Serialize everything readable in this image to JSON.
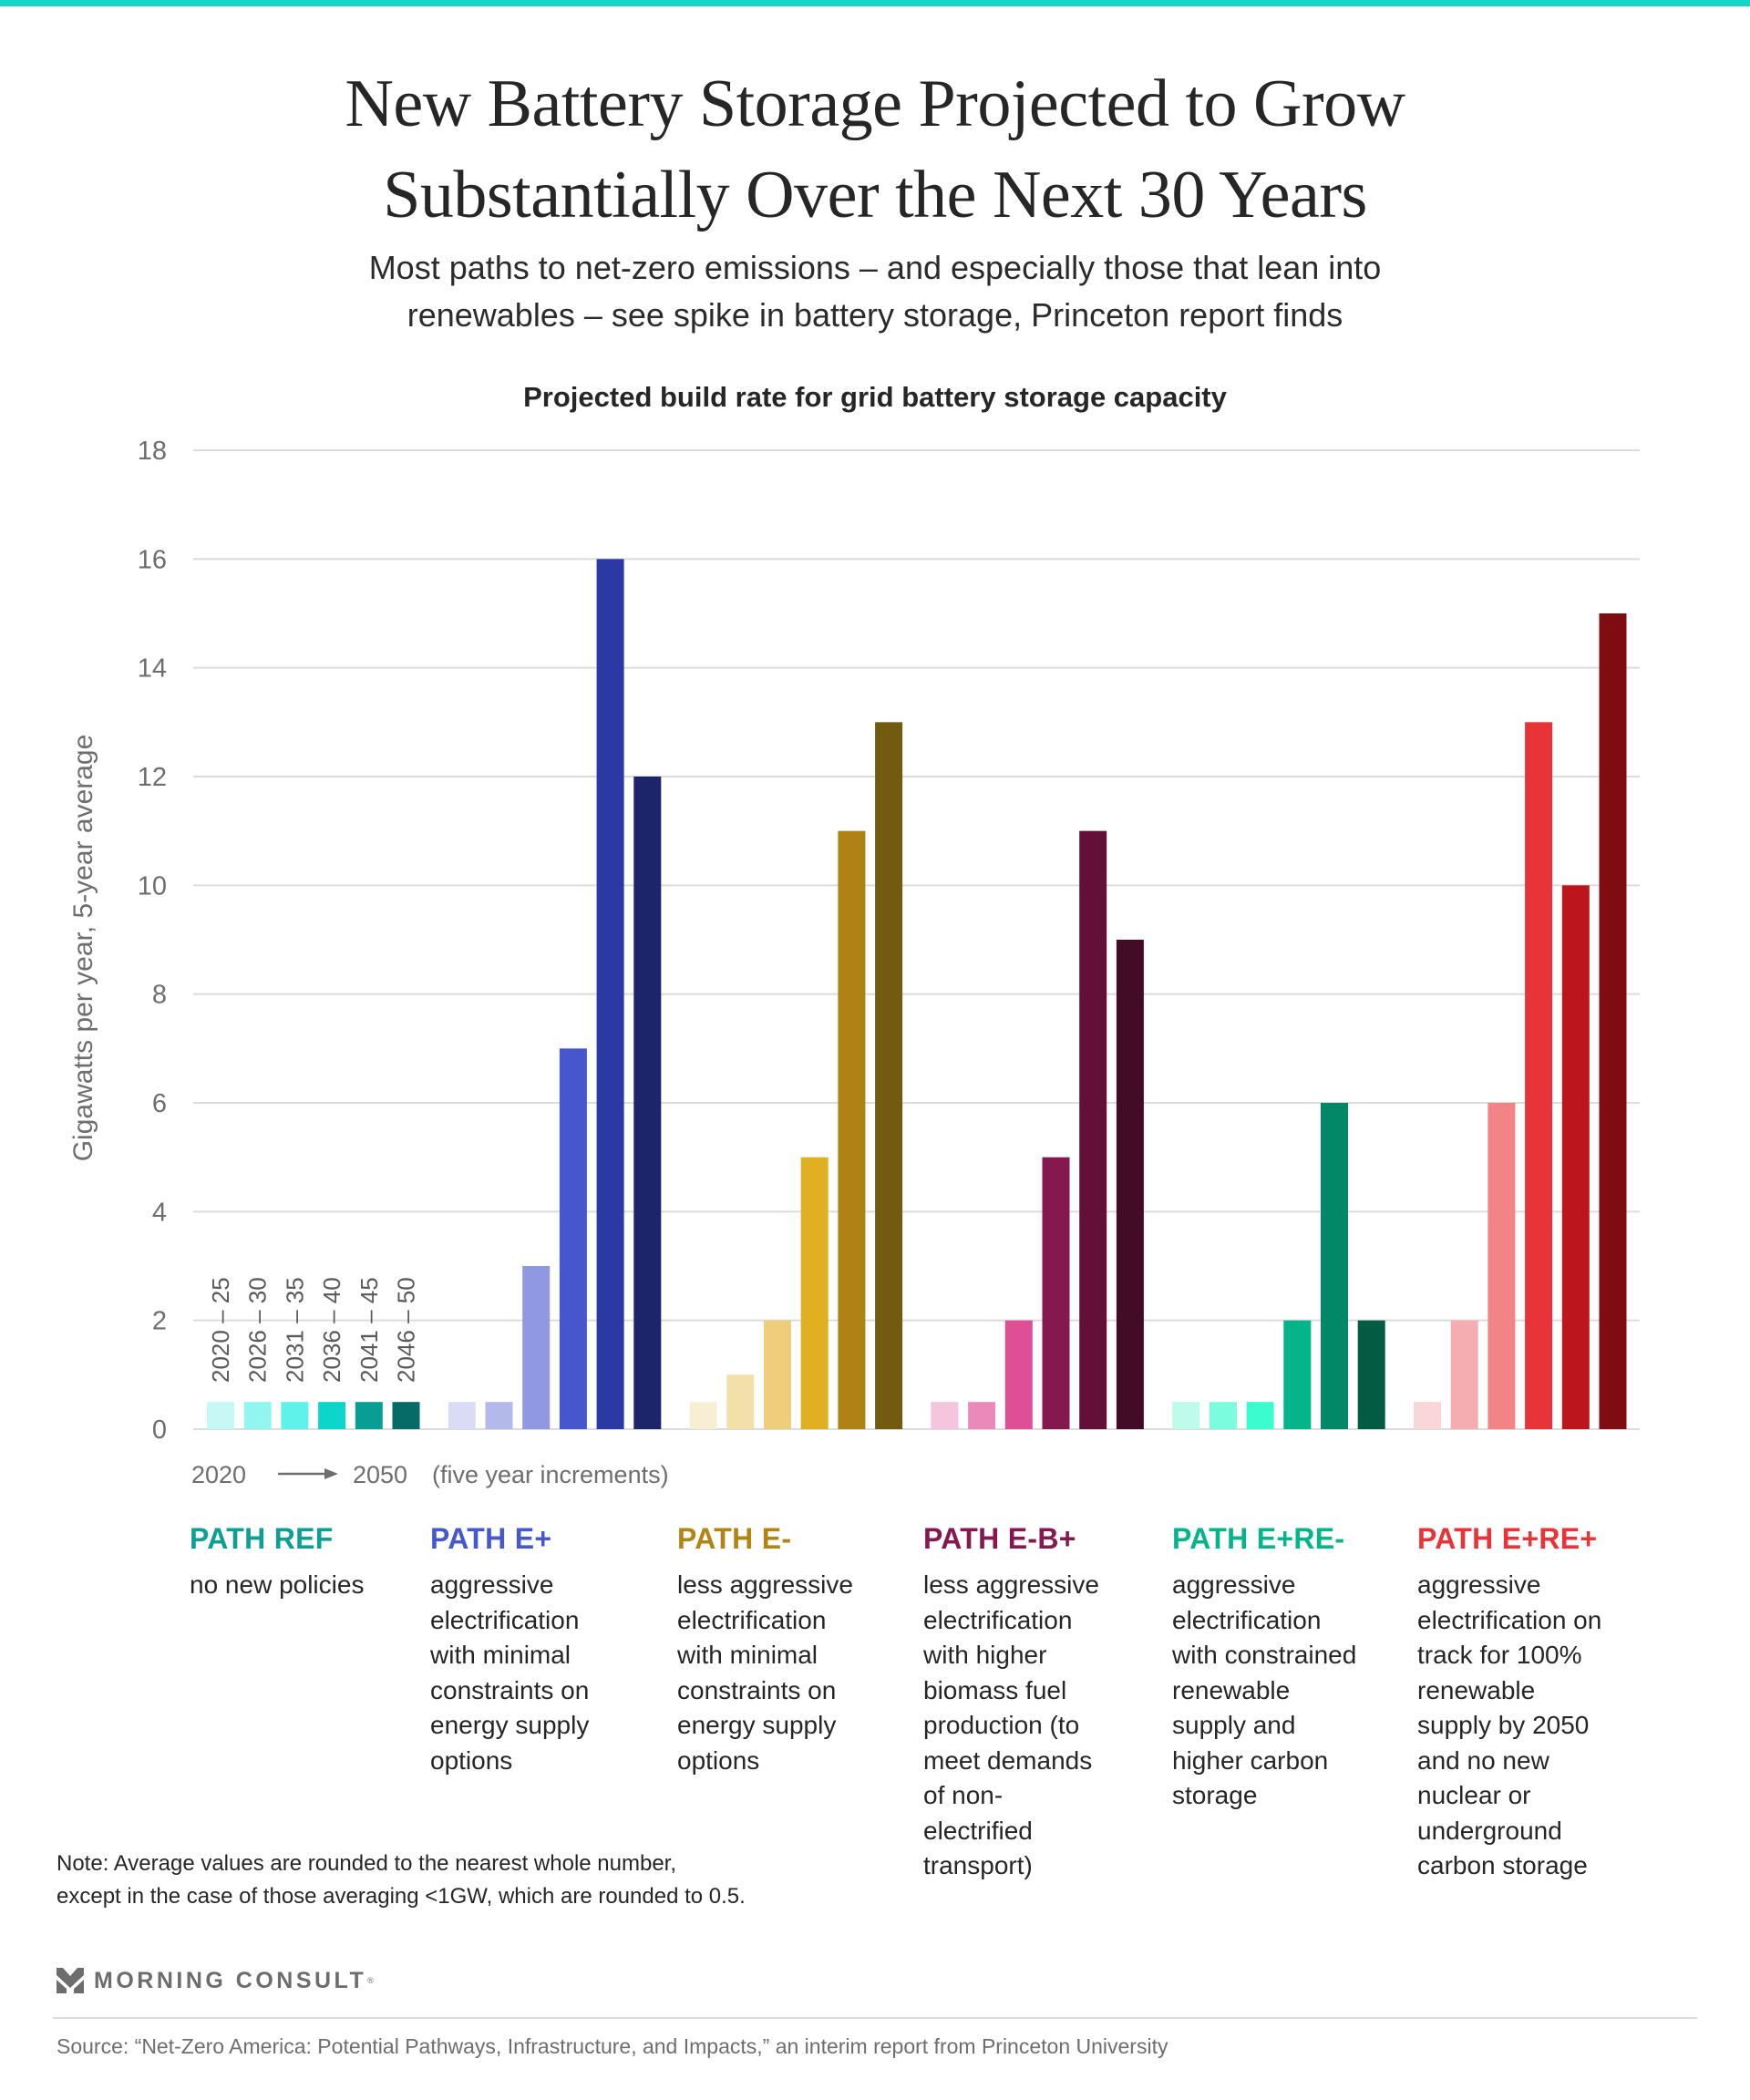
{
  "header": {
    "title_lines": [
      "New Battery Storage Projected to Grow",
      "Substantially Over the Next 30 Years"
    ],
    "subtitle_lines": [
      "Most paths to net-zero emissions – and especially those that lean into",
      "renewables – see spike in battery storage, Princeton report finds"
    ],
    "accent_color": "#13D6CB"
  },
  "chart_data": {
    "type": "bar",
    "title": "Projected build rate for grid battery storage capacity",
    "ylabel": "Gigawatts per year, 5-year average",
    "xlabel": "2020 → 2050 (five year increments)",
    "ylim": [
      0,
      18
    ],
    "yticks": [
      "0",
      "2",
      "4",
      "6",
      "8",
      "10",
      "12",
      "14",
      "16",
      "18"
    ],
    "grid": true,
    "periods": [
      "2020 – 25",
      "2026 – 30",
      "2031 – 35",
      "2036 – 40",
      "2041 – 45",
      "2046 – 50"
    ],
    "series": [
      {
        "name": "PATH REF",
        "label_color": "#0E9E94",
        "colors": [
          "#C6F8F5",
          "#92F5F0",
          "#5EF2EA",
          "#0CD5CA",
          "#089D95",
          "#066B64"
        ],
        "values": [
          0.5,
          0.5,
          0.5,
          0.5,
          0.5,
          0.5
        ]
      },
      {
        "name": "PATH E+",
        "label_color": "#4757CC",
        "colors": [
          "#DADCF6",
          "#B3B9EA",
          "#8F98E1",
          "#4756CC",
          "#2A39A3",
          "#1C2569"
        ],
        "values": [
          0.5,
          0.5,
          3,
          7,
          16,
          12
        ]
      },
      {
        "name": "PATH E-",
        "label_color": "#B08516",
        "colors": [
          "#F8EED4",
          "#F3DFA8",
          "#EECD7B",
          "#E1AF22",
          "#AF8216",
          "#735A11"
        ],
        "values": [
          0.5,
          1,
          2,
          5,
          11,
          13
        ]
      },
      {
        "name": "PATH E-B+",
        "label_color": "#861850",
        "colors": [
          "#F5C5DD",
          "#EA8ABB",
          "#DF4F96",
          "#861850",
          "#621038",
          "#420B26"
        ],
        "values": [
          0.5,
          0.5,
          2,
          5,
          11,
          9
        ]
      },
      {
        "name": "PATH E+RE-",
        "label_color": "#06B48A",
        "colors": [
          "#BEFBEA",
          "#7CFCDE",
          "#3BFCCE",
          "#04B48A",
          "#028866",
          "#025C44"
        ],
        "values": [
          0.5,
          0.5,
          0.5,
          2,
          6,
          2
        ]
      },
      {
        "name": "PATH E+RE+",
        "label_color": "#E83339",
        "colors": [
          "#F9D6D7",
          "#F5ADB1",
          "#F18487",
          "#E83339",
          "#BD151C",
          "#7F0C11"
        ],
        "values": [
          0.5,
          2,
          6,
          13,
          10,
          15
        ]
      }
    ]
  },
  "xaxis_legend": {
    "start": "2020",
    "end": "2050",
    "suffix": "(five year increments)"
  },
  "paths": [
    {
      "name": "PATH REF",
      "desc_lines": [
        "no new policies"
      ]
    },
    {
      "name": "PATH E+",
      "desc_lines": [
        "aggressive",
        "electrification",
        "with minimal",
        "constraints on",
        "energy supply",
        "options"
      ]
    },
    {
      "name": "PATH E-",
      "desc_lines": [
        "less aggressive",
        "electrification",
        "with minimal",
        "constraints on",
        "energy supply",
        "options"
      ]
    },
    {
      "name": "PATH E-B+",
      "desc_lines": [
        "less aggressive",
        "electrification",
        "with higher",
        "biomass  fuel",
        "production (to",
        "meet demands",
        "of non-",
        "electrified",
        "transport)"
      ]
    },
    {
      "name": "PATH E+RE-",
      "desc_lines": [
        "aggressive",
        "electrification",
        "with constrained",
        "renewable",
        "supply and",
        "higher carbon",
        "storage"
      ]
    },
    {
      "name": "PATH E+RE+",
      "desc_lines": [
        "aggressive",
        "electrification on",
        "track for 100%",
        "renewable",
        "supply by 2050",
        "and no new",
        "nuclear or",
        "underground",
        "carbon storage"
      ]
    }
  ],
  "footer": {
    "note_lines": [
      "Note: Average values are rounded to the nearest whole number,",
      "except in the case of those averaging <1GW, which are rounded to 0.5."
    ],
    "logo_text": "MORNING CONSULT",
    "logo_reg": "®",
    "source": "Source: “Net-Zero America: Potential Pathways, Infrastructure, and Impacts,” an interim report from Princeton University"
  }
}
